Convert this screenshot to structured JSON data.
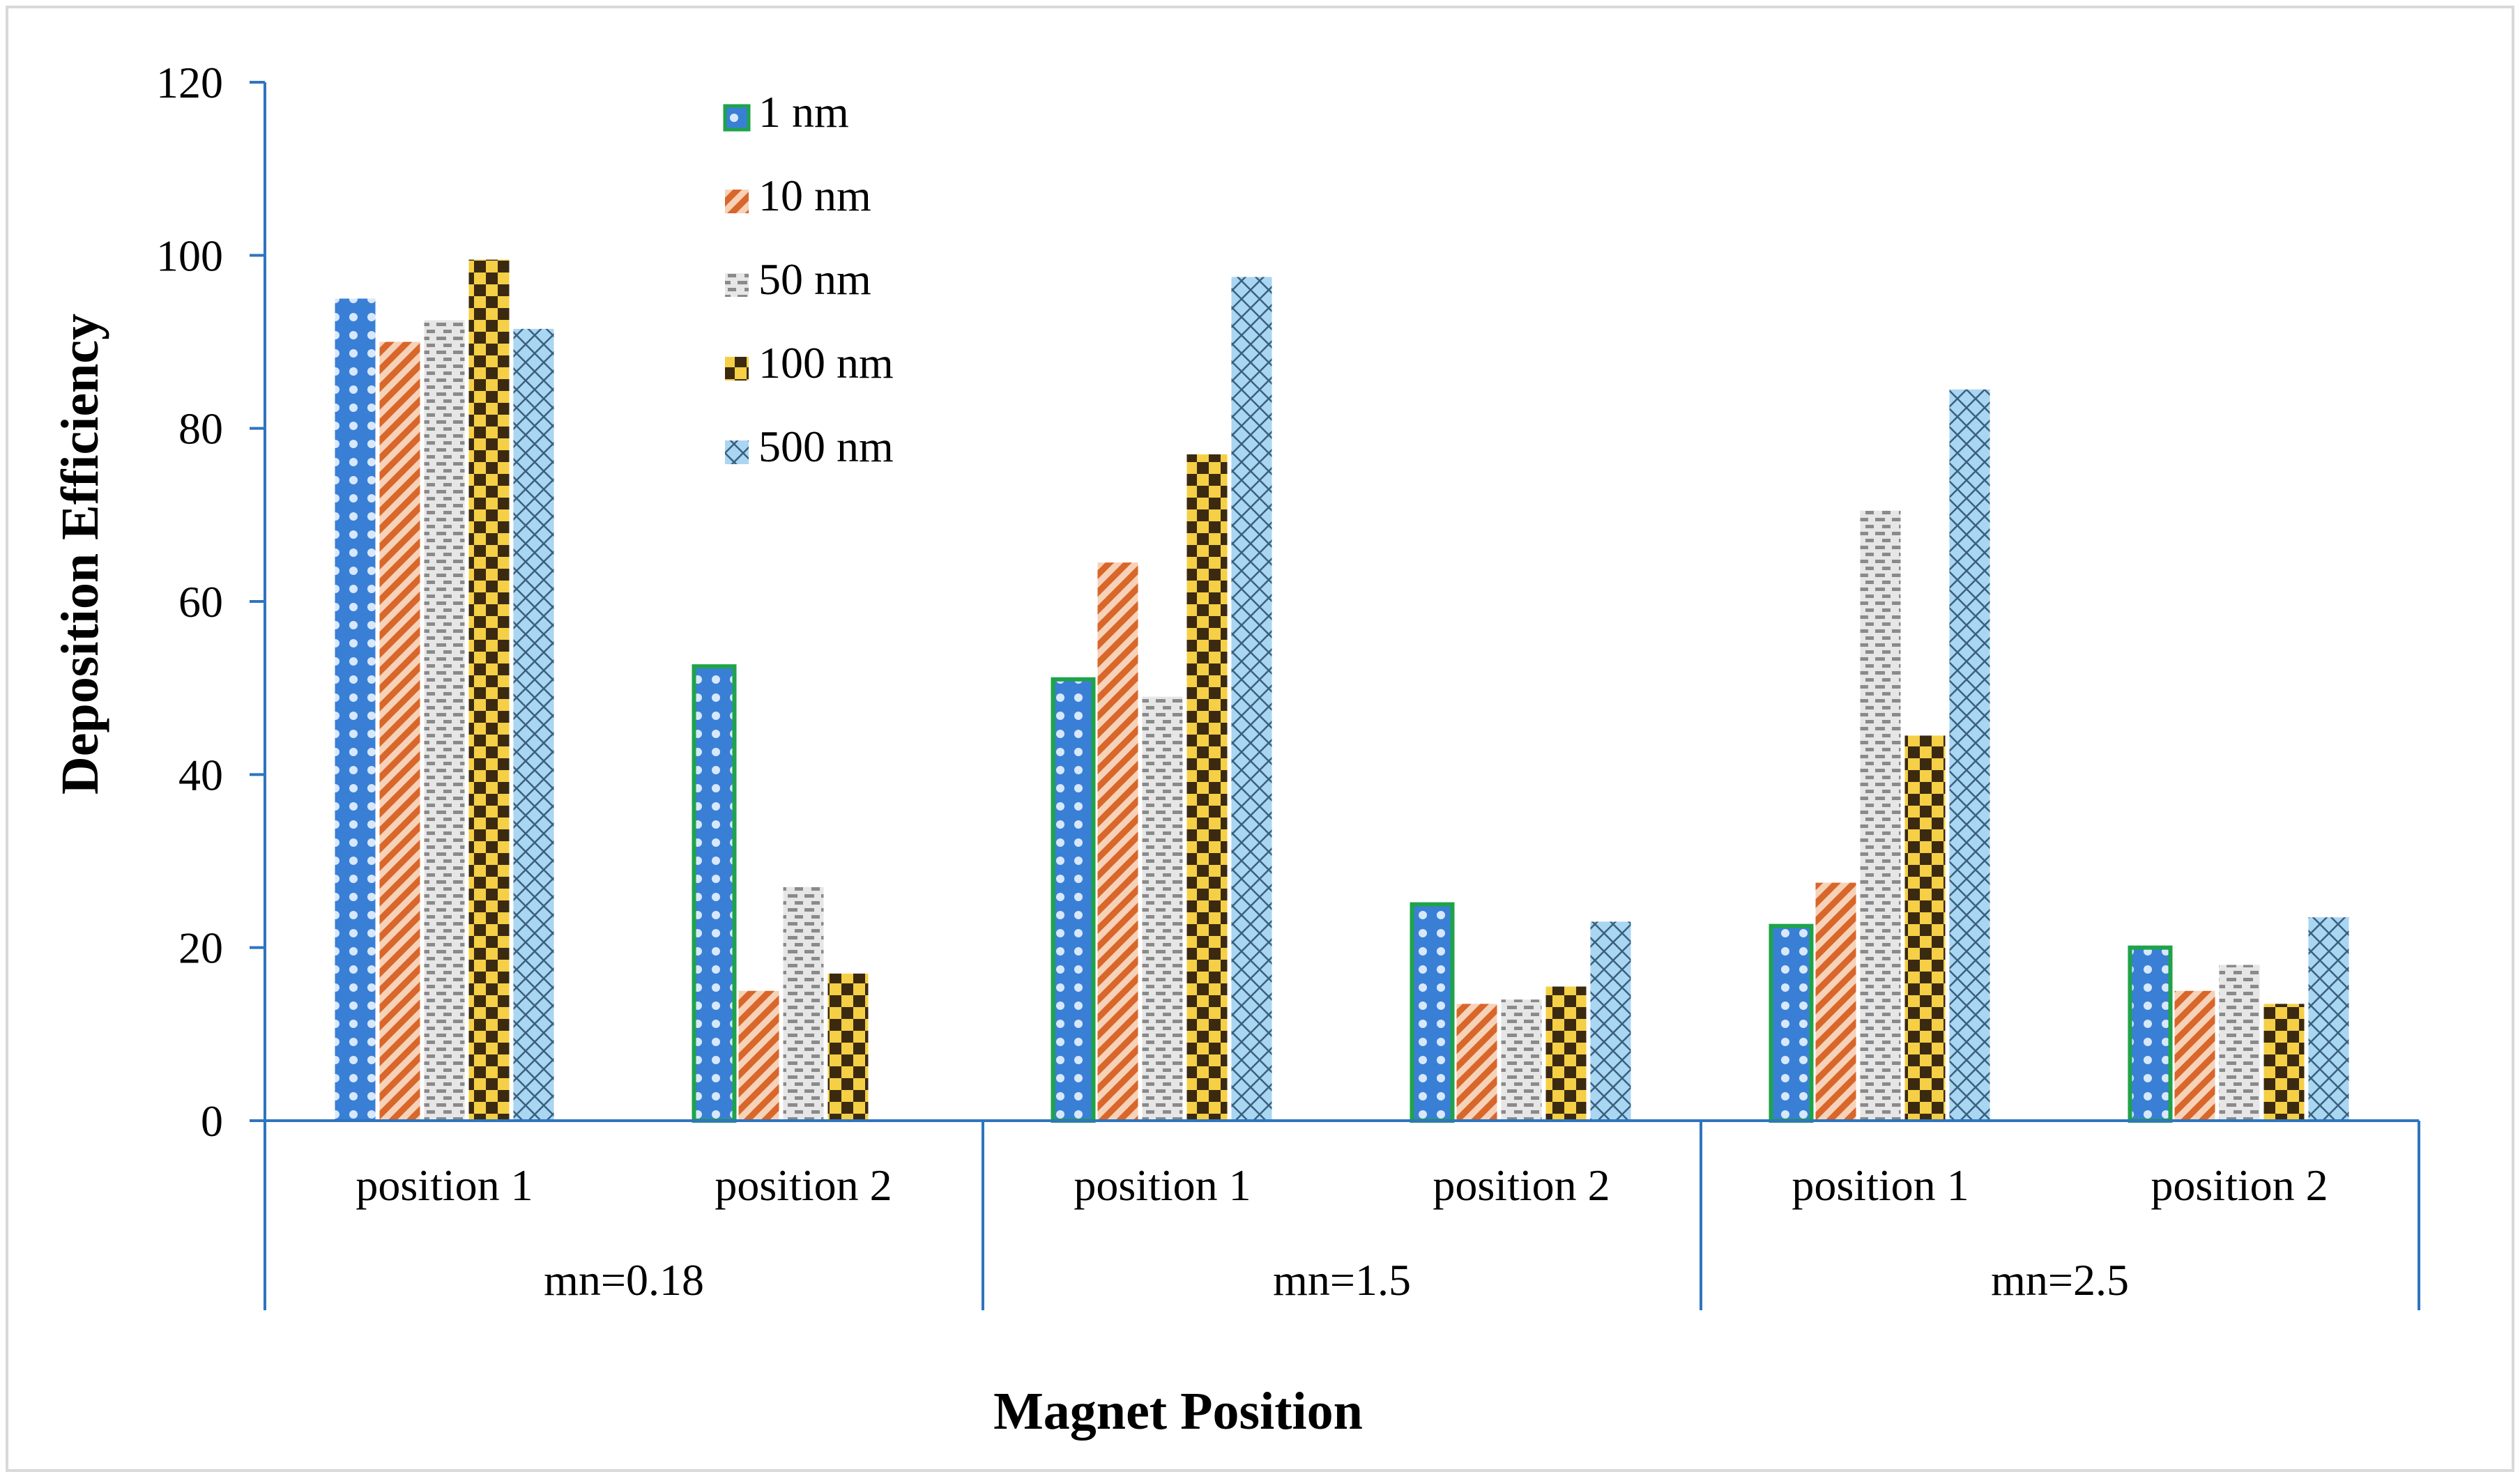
{
  "chart_data": {
    "type": "bar",
    "title": "",
    "xlabel": "Magnet Position",
    "ylabel": "Deposition Efficiency",
    "ylim": [
      0,
      120
    ],
    "yticks": [
      0,
      20,
      40,
      60,
      80,
      100,
      120
    ],
    "grid": false,
    "legend_position": "top-left",
    "groups": [
      "mn=0.18",
      "mn=1.5",
      "mn=2.5"
    ],
    "categories": [
      "position 1",
      "position 2",
      "position 1",
      "position 2",
      "position 1",
      "position 2"
    ],
    "series": [
      {
        "name": "1 nm",
        "values": [
          95,
          52.5,
          51,
          25,
          22.5,
          20
        ],
        "color": "#3a7fd6",
        "pattern": "dots"
      },
      {
        "name": "10 nm",
        "values": [
          90,
          15,
          64.5,
          13.5,
          27.5,
          15
        ],
        "color": "#e07a3f",
        "pattern": "diagonal"
      },
      {
        "name": "50 nm",
        "values": [
          92.5,
          27,
          49,
          14,
          70.5,
          18
        ],
        "color": "#b5b5b5",
        "pattern": "dash"
      },
      {
        "name": "100 nm",
        "values": [
          99.5,
          17,
          77,
          15.5,
          44.5,
          13.5
        ],
        "color": "#f2c230",
        "pattern": "checker"
      },
      {
        "name": "500 nm",
        "values": [
          91.5,
          0,
          97.5,
          23,
          84.5,
          23.5
        ],
        "color": "#8ec8ea",
        "pattern": "cross"
      }
    ]
  }
}
